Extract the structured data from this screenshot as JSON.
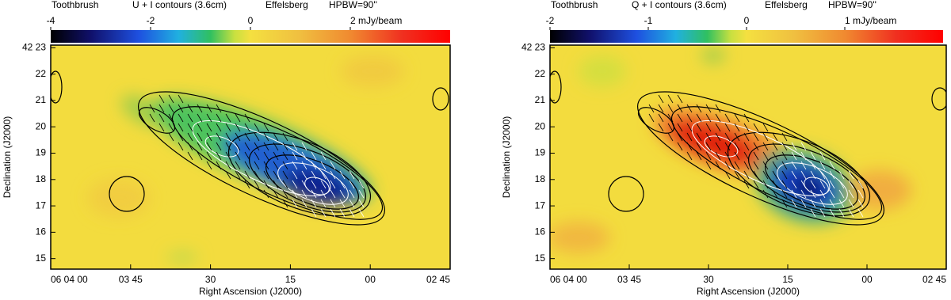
{
  "chart_data": [
    {
      "type": "map",
      "title": "Toothbrush",
      "subtitle": "U + I contours (3.6cm)",
      "telescope": "Effelsberg",
      "beam": "HPBW=90''",
      "xlabel": "Right Ascension (J2000)",
      "ylabel": "Declination (J2000)",
      "xlim": [
        21840,
        21765
      ],
      "xticks": [
        {
          "value": 21840,
          "label": "06 04 00"
        },
        {
          "value": 21825,
          "label": "03 45"
        },
        {
          "value": 21810,
          "label": "30"
        },
        {
          "value": 21795,
          "label": "15"
        },
        {
          "value": 21780,
          "label": "00"
        },
        {
          "value": 21765,
          "label": "02 45"
        }
      ],
      "ylim": [
        14.6,
        23.1
      ],
      "yticks": [
        15,
        16,
        17,
        18,
        19,
        20,
        21,
        22,
        {
          "value": 23,
          "label": "42 23"
        }
      ],
      "clim": [
        -4,
        4
      ],
      "cticks": [
        -4,
        -2,
        0,
        {
          "value": 2,
          "label": "2 mJy/beam"
        }
      ]
    },
    {
      "type": "map",
      "title": "Toothbrush",
      "subtitle": "Q + I contours (3.6cm)",
      "telescope": "Effelsberg",
      "beam": "HPBW=90''",
      "xlabel": "Right Ascension (J2000)",
      "ylabel": "Declination (J2000)",
      "xlim": [
        21840,
        21765
      ],
      "xticks": [
        {
          "value": 21840,
          "label": "06 04 00"
        },
        {
          "value": 21825,
          "label": "03 45"
        },
        {
          "value": 21810,
          "label": "30"
        },
        {
          "value": 21795,
          "label": "15"
        },
        {
          "value": 21780,
          "label": "00"
        },
        {
          "value": 21765,
          "label": "02 45"
        }
      ],
      "ylim": [
        14.6,
        23.1
      ],
      "yticks": [
        15,
        16,
        17,
        18,
        19,
        20,
        21,
        22,
        {
          "value": 23,
          "label": "42 23"
        }
      ],
      "clim": [
        -2,
        2
      ],
      "cticks": [
        -2,
        -1,
        0,
        {
          "value": 1,
          "label": "1 mJy/beam"
        }
      ]
    }
  ]
}
